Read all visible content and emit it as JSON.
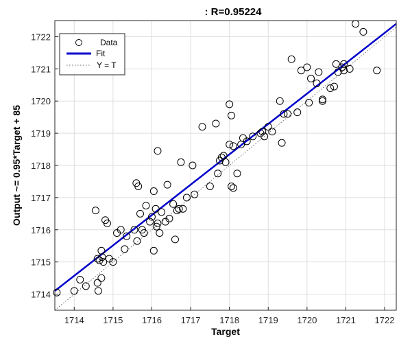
{
  "chart_data": {
    "type": "scatter",
    "title": ": R=0.95224",
    "xlabel": "Target",
    "ylabel": "Output ~= 0.95*Target + 85",
    "xlim": [
      1713.5,
      1722.3
    ],
    "ylim": [
      1713.5,
      1722.5
    ],
    "xticks": [
      1714,
      1715,
      1716,
      1717,
      1718,
      1719,
      1720,
      1721,
      1722
    ],
    "yticks": [
      1714,
      1715,
      1716,
      1717,
      1718,
      1719,
      1720,
      1721,
      1722
    ],
    "grid": true,
    "legend_position": "top-left",
    "series": [
      {
        "name": "Data",
        "style": "open-circle",
        "color": "#000000",
        "points": [
          [
            1713.55,
            1714.05
          ],
          [
            1714.0,
            1714.1
          ],
          [
            1714.15,
            1714.45
          ],
          [
            1714.3,
            1714.25
          ],
          [
            1714.55,
            1716.6
          ],
          [
            1714.6,
            1714.35
          ],
          [
            1714.62,
            1714.1
          ],
          [
            1714.6,
            1715.1
          ],
          [
            1714.7,
            1714.5
          ],
          [
            1714.65,
            1715.05
          ],
          [
            1714.7,
            1715.35
          ],
          [
            1714.72,
            1715.15
          ],
          [
            1714.75,
            1715.0
          ],
          [
            1714.8,
            1716.3
          ],
          [
            1714.85,
            1716.2
          ],
          [
            1714.9,
            1715.1
          ],
          [
            1715.0,
            1715.0
          ],
          [
            1715.1,
            1715.9
          ],
          [
            1715.2,
            1716.0
          ],
          [
            1715.3,
            1715.4
          ],
          [
            1715.35,
            1715.8
          ],
          [
            1715.55,
            1716.0
          ],
          [
            1715.6,
            1717.45
          ],
          [
            1715.62,
            1715.65
          ],
          [
            1715.65,
            1717.35
          ],
          [
            1715.7,
            1716.5
          ],
          [
            1715.75,
            1716.0
          ],
          [
            1715.8,
            1715.9
          ],
          [
            1715.85,
            1716.75
          ],
          [
            1715.95,
            1716.25
          ],
          [
            1716.0,
            1716.4
          ],
          [
            1716.05,
            1715.35
          ],
          [
            1716.05,
            1717.2
          ],
          [
            1716.1,
            1716.65
          ],
          [
            1716.12,
            1716.1
          ],
          [
            1716.15,
            1718.45
          ],
          [
            1716.15,
            1716.2
          ],
          [
            1716.2,
            1715.9
          ],
          [
            1716.25,
            1716.55
          ],
          [
            1716.35,
            1716.25
          ],
          [
            1716.4,
            1717.4
          ],
          [
            1716.45,
            1716.35
          ],
          [
            1716.55,
            1716.8
          ],
          [
            1716.6,
            1715.7
          ],
          [
            1716.65,
            1716.6
          ],
          [
            1716.7,
            1716.65
          ],
          [
            1716.75,
            1718.1
          ],
          [
            1716.8,
            1716.65
          ],
          [
            1716.9,
            1717.0
          ],
          [
            1717.05,
            1718.0
          ],
          [
            1717.1,
            1717.1
          ],
          [
            1717.3,
            1719.2
          ],
          [
            1717.5,
            1717.35
          ],
          [
            1717.65,
            1719.3
          ],
          [
            1717.7,
            1717.75
          ],
          [
            1717.75,
            1718.15
          ],
          [
            1717.8,
            1718.25
          ],
          [
            1717.85,
            1718.3
          ],
          [
            1717.9,
            1718.1
          ],
          [
            1718.0,
            1719.9
          ],
          [
            1718.0,
            1718.65
          ],
          [
            1718.05,
            1717.35
          ],
          [
            1718.05,
            1719.55
          ],
          [
            1718.1,
            1717.3
          ],
          [
            1718.1,
            1718.6
          ],
          [
            1718.2,
            1717.75
          ],
          [
            1718.3,
            1718.65
          ],
          [
            1718.35,
            1718.85
          ],
          [
            1718.45,
            1718.75
          ],
          [
            1718.6,
            1718.9
          ],
          [
            1718.8,
            1719.0
          ],
          [
            1718.85,
            1719.05
          ],
          [
            1718.9,
            1718.9
          ],
          [
            1719.0,
            1719.2
          ],
          [
            1719.1,
            1719.05
          ],
          [
            1719.3,
            1720.0
          ],
          [
            1719.35,
            1718.7
          ],
          [
            1719.4,
            1719.6
          ],
          [
            1719.5,
            1719.6
          ],
          [
            1719.6,
            1721.3
          ],
          [
            1719.75,
            1719.65
          ],
          [
            1719.85,
            1720.95
          ],
          [
            1720.0,
            1721.05
          ],
          [
            1720.05,
            1719.95
          ],
          [
            1720.1,
            1720.7
          ],
          [
            1720.25,
            1720.55
          ],
          [
            1720.3,
            1720.9
          ],
          [
            1720.4,
            1720.05
          ],
          [
            1720.4,
            1720.0
          ],
          [
            1720.6,
            1720.4
          ],
          [
            1720.7,
            1720.45
          ],
          [
            1720.75,
            1721.15
          ],
          [
            1720.8,
            1720.9
          ],
          [
            1720.9,
            1721.05
          ],
          [
            1720.95,
            1721.15
          ],
          [
            1720.95,
            1720.95
          ],
          [
            1721.1,
            1721.0
          ],
          [
            1721.25,
            1722.4
          ],
          [
            1721.45,
            1722.15
          ],
          [
            1721.8,
            1720.95
          ]
        ]
      },
      {
        "name": "Fit",
        "style": "line",
        "color": "#0000cc",
        "x": [
          1713.5,
          1722.3
        ],
        "y": [
          1714.1,
          1722.4
        ]
      },
      {
        "name": "Y = T",
        "style": "dotted",
        "color": "#666666",
        "x": [
          1713.5,
          1722.3
        ],
        "y": [
          1713.5,
          1722.3
        ]
      }
    ]
  }
}
